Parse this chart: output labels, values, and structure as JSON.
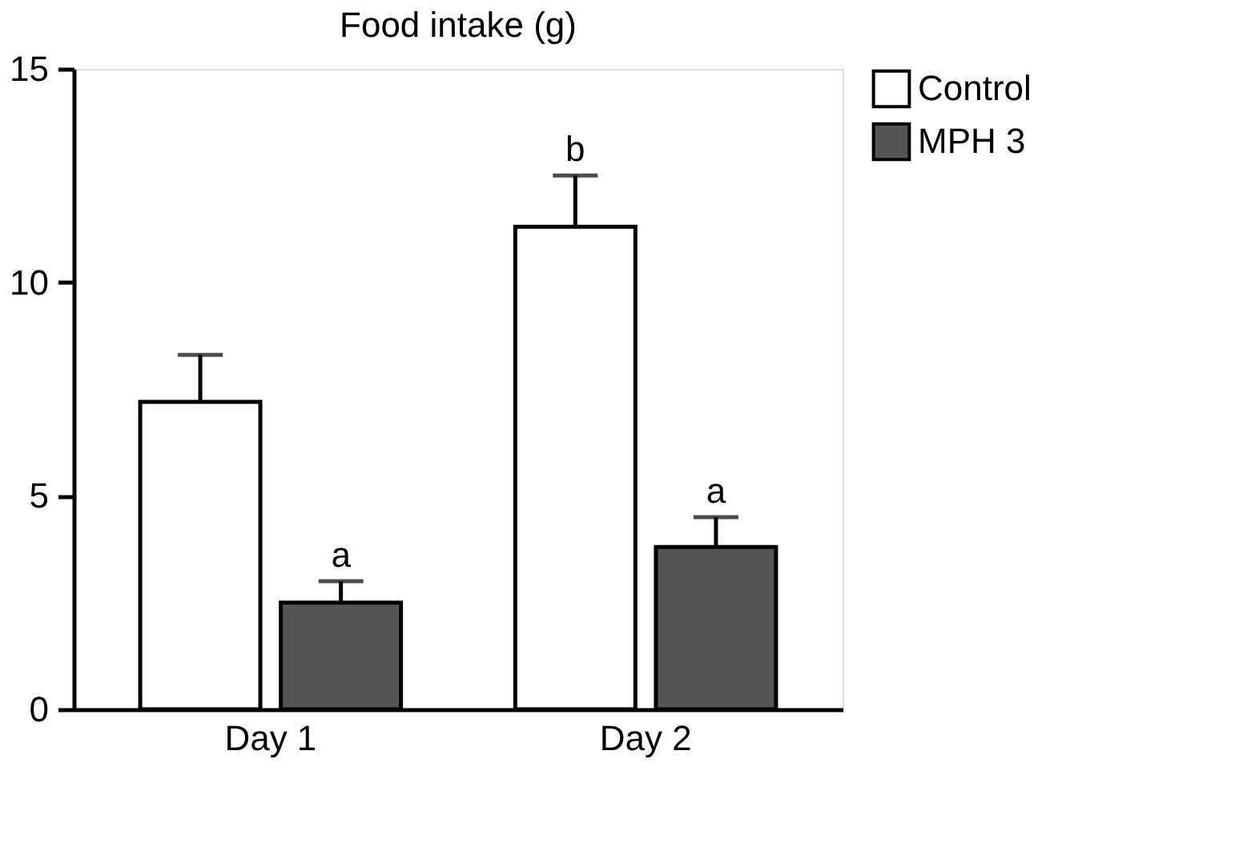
{
  "chart_data": {
    "type": "bar",
    "title": "Food intake (g)",
    "categories": [
      "Day 1",
      "Day 2"
    ],
    "series": [
      {
        "name": "Control",
        "color": "#ffffff",
        "values": [
          7.2,
          11.3
        ],
        "errors": [
          1.1,
          1.2
        ],
        "value_labels": [
          null,
          "b"
        ]
      },
      {
        "name": "MPH 3",
        "color": "#555555",
        "values": [
          2.5,
          3.8
        ],
        "errors": [
          0.5,
          0.7
        ],
        "value_labels": [
          "a",
          "a"
        ]
      }
    ],
    "ylim": [
      0,
      15
    ],
    "yticks": [
      0,
      5,
      10,
      15
    ],
    "grid": false,
    "legend": "top right"
  }
}
